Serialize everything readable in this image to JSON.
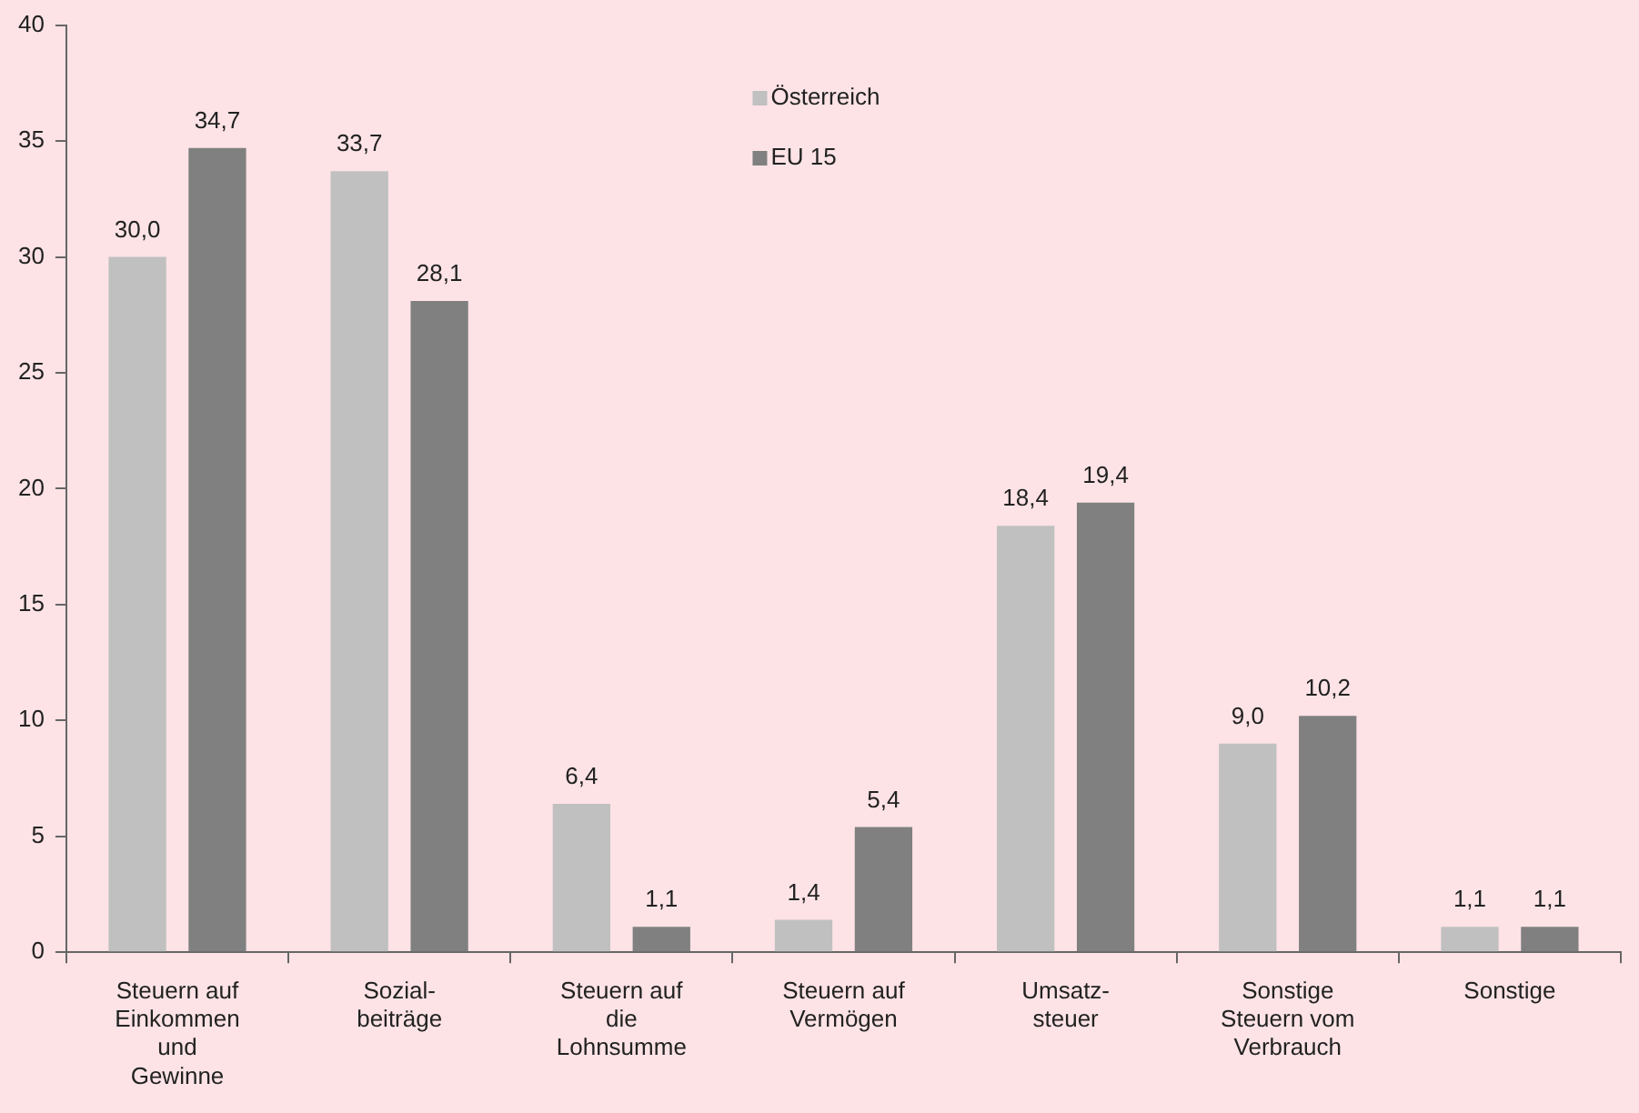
{
  "chart_data": {
    "type": "bar",
    "categories": [
      "Steuern auf Einkommen und Gewinne",
      "Sozial-beiträge",
      "Steuern auf die Lohnsumme",
      "Steuern auf Vermögen",
      "Umsatz-steuer",
      "Sonstige Steuern vom Verbrauch",
      "Sonstige"
    ],
    "series": [
      {
        "name": "Österreich",
        "color": "#c0c0c0",
        "values": [
          30.0,
          33.7,
          6.4,
          1.4,
          18.4,
          9.0,
          1.1
        ],
        "value_labels": [
          "30,0",
          "33,7",
          "6,4",
          "1,4",
          "18,4",
          "9,0",
          "1,1"
        ]
      },
      {
        "name": "EU 15",
        "color": "#808080",
        "values": [
          34.7,
          28.1,
          1.1,
          5.4,
          19.4,
          10.2,
          1.1
        ],
        "value_labels": [
          "34,7",
          "28,1",
          "1,1",
          "5,4",
          "19,4",
          "10,2",
          "1,1"
        ]
      }
    ],
    "ylim": [
      0,
      40
    ],
    "yticks": [
      0,
      5,
      10,
      15,
      20,
      25,
      30,
      35,
      40
    ],
    "grid": false,
    "legend": "top"
  }
}
